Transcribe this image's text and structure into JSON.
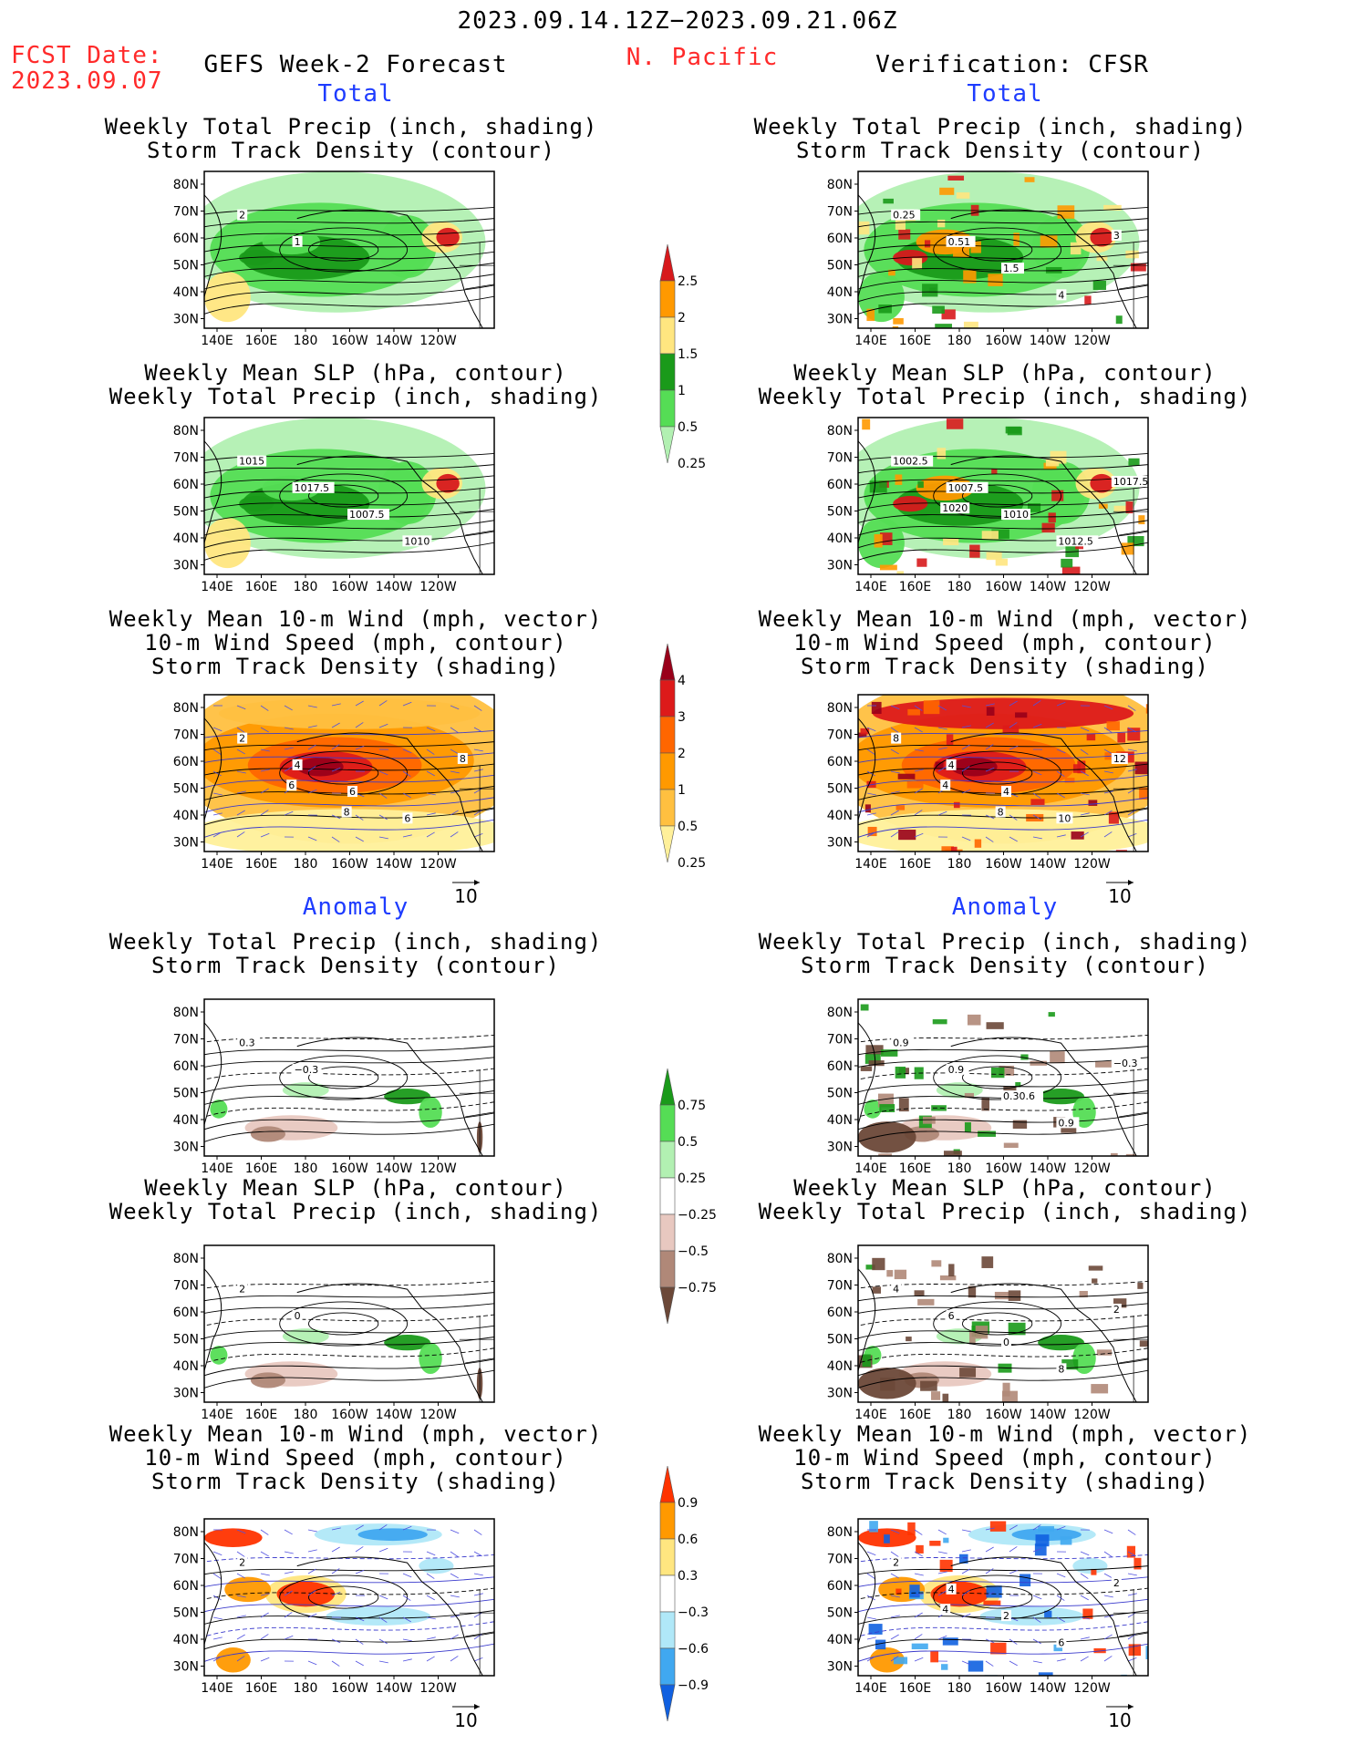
{
  "header": {
    "date_range": "2023.09.14.12Z−2023.09.21.06Z",
    "fcst_label": "FCST Date:",
    "fcst_date": "2023.09.07",
    "model_label": "GEFS Week-2 Forecast",
    "region": "N. Pacific",
    "verification_label": "Verification: CFSR"
  },
  "sections": {
    "total": "Total",
    "anomaly": "Anomaly"
  },
  "panel_titles": {
    "precip_storm": [
      "Weekly Total Precip (inch, shading)",
      "Storm Track Density (contour)"
    ],
    "slp_precip": [
      "Weekly Mean SLP (hPa, contour)",
      "Weekly Total Precip (inch, shading)"
    ],
    "wind_storm": [
      "Weekly Mean 10-m Wind (mph, vector)",
      "10-m Wind Speed (mph, contour)",
      "Storm Track Density (shading)"
    ]
  },
  "axes": {
    "lat_labels": [
      "80N",
      "70N",
      "60N",
      "50N",
      "40N",
      "30N"
    ],
    "lon_labels": [
      "140E",
      "160E",
      "180",
      "160W",
      "140W",
      "120W"
    ]
  },
  "vector_reference": "10",
  "colorbars": {
    "precip_total": {
      "labels": [
        "2.5",
        "2",
        "1.5",
        "1",
        "0.5",
        "0.25"
      ],
      "colors": [
        "#d7191c",
        "#ff9900",
        "#ffe680",
        "#1a9a1a",
        "#55dd55",
        "#b2f0b2"
      ]
    },
    "storm_total": {
      "labels": [
        "4",
        "3",
        "2",
        "1",
        "0.5",
        "0.25"
      ],
      "colors": [
        "#99001a",
        "#dd1a1a",
        "#ff6600",
        "#ff9900",
        "#ffc040",
        "#fff09a"
      ]
    },
    "precip_anom": {
      "labels": [
        "0.75",
        "0.5",
        "0.25",
        "−0.25",
        "−0.5",
        "−0.75"
      ],
      "colors": [
        "#1a9a1a",
        "#55dd55",
        "#b2f0b2",
        "#ffffff",
        "#e8c8c0",
        "#b08878",
        "#6b4838"
      ]
    },
    "storm_anom": {
      "labels": [
        "0.9",
        "0.6",
        "0.3",
        "−0.3",
        "−0.6",
        "−0.9"
      ],
      "colors": [
        "#ff3300",
        "#ff9900",
        "#ffe680",
        "#ffffff",
        "#b0e8f8",
        "#40a8f0",
        "#1060e0"
      ]
    }
  },
  "contour_labels": {
    "fc_total_precip": [
      "2",
      "1"
    ],
    "obs_total_precip": [
      "0.25",
      "0.51",
      "1.5",
      "4",
      "3"
    ],
    "fc_total_slp": [
      "1015",
      "1017.5",
      "1007.5",
      "1010"
    ],
    "obs_total_slp": [
      "1002.5",
      "1007.5",
      "1010",
      "1012.5",
      "1017.5",
      "1020"
    ],
    "fc_total_wind": [
      "2",
      "4",
      "6",
      "6",
      "8",
      "6",
      "8"
    ],
    "obs_total_wind": [
      "8",
      "4",
      "4",
      "10",
      "12",
      "4",
      "8"
    ],
    "fc_anom_precip": [
      "0.3",
      "−0.3"
    ],
    "obs_anom_precip": [
      "0.9",
      "0.9",
      "0.30.6",
      "0.9",
      "−0.3"
    ],
    "fc_anom_slp": [
      "2",
      "0"
    ],
    "obs_anom_slp": [
      "4",
      "6",
      "0",
      "8",
      "2"
    ],
    "fc_anom_wind": [
      "2"
    ],
    "obs_anom_wind": [
      "2",
      "4",
      "2",
      "6",
      "2",
      "4"
    ]
  }
}
